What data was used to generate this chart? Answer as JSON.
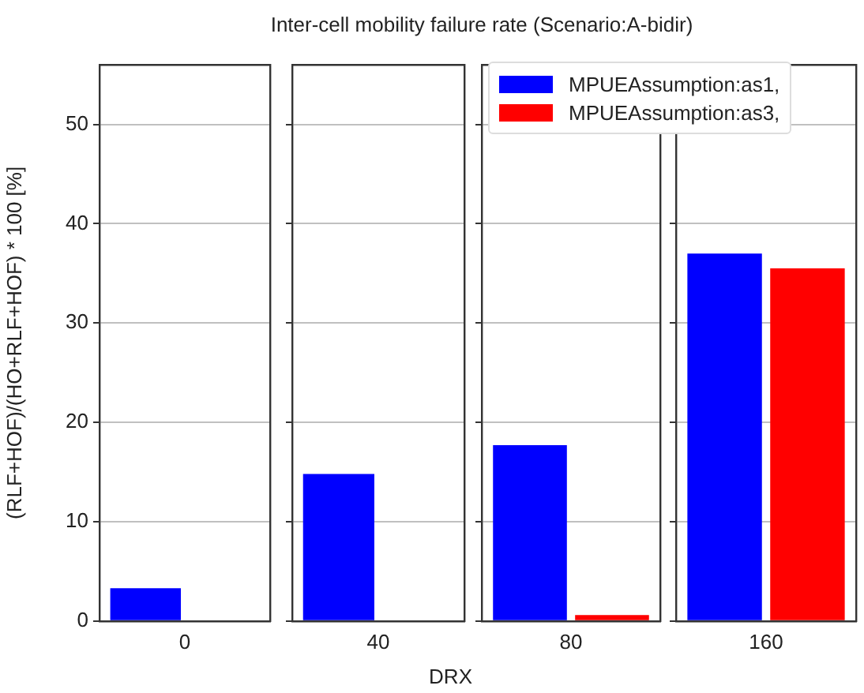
{
  "chart_data": [
    {
      "type": "bar",
      "title": "Inter-cell mobility failure rate (Scenario:A-bidir)",
      "ylabel": "(RLF+HOF)/(HO+RLF+HOF) * 100 [%]",
      "categories": [
        "0"
      ],
      "series": [
        {
          "color": "#0000ff",
          "values": [
            3.3
          ]
        },
        {
          "color": "#ff0000",
          "values": [
            0
          ]
        }
      ],
      "ylim": [
        0,
        56
      ],
      "yticks": [
        0,
        10,
        20,
        30,
        40,
        50
      ],
      "grid": "y"
    },
    {
      "type": "bar",
      "xlabel": "DRX",
      "categories": [
        "40"
      ],
      "series": [
        {
          "color": "#0000ff",
          "values": [
            14.8
          ]
        },
        {
          "color": "#ff0000",
          "values": [
            0
          ]
        }
      ],
      "ylim": [
        0,
        56
      ],
      "yticks": [
        0,
        10,
        20,
        30,
        40,
        50
      ],
      "grid": "y",
      "tick_labels": "x"
    },
    {
      "type": "bar",
      "categories": [
        "80"
      ],
      "series": [
        {
          "name": "MPUEAssumption:as1,",
          "color": "#0000ff",
          "values": [
            17.7
          ]
        },
        {
          "name": "MPUEAssumption:as3,",
          "color": "#ff0000",
          "values": [
            0.6
          ]
        }
      ],
      "ylim": [
        0,
        56
      ],
      "yticks": [
        0,
        10,
        20,
        30,
        40,
        50
      ],
      "grid": "y",
      "tick_labels": "x",
      "legend": "top right"
    },
    {
      "type": "bar",
      "categories": [
        "160"
      ],
      "series": [
        {
          "color": "#0000ff",
          "values": [
            37
          ]
        },
        {
          "color": "#ff0000",
          "values": [
            35.5
          ]
        }
      ],
      "ylim": [
        0,
        56
      ],
      "yticks": [
        0,
        10,
        20,
        30,
        40,
        50
      ],
      "grid": "y",
      "tick_labels": "x"
    }
  ]
}
